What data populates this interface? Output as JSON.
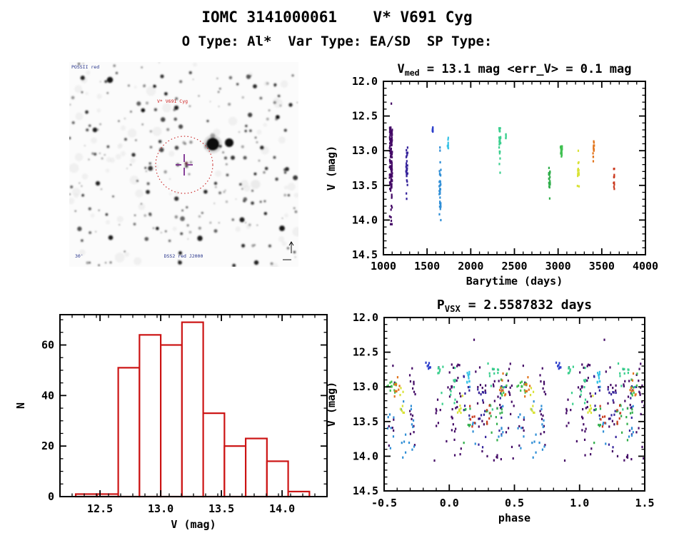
{
  "header": {
    "title": "IOMC 3141000061    V* V691 Cyg",
    "subtitle": "O Type: Al*  Var Type: EA/SD  SP Type:"
  },
  "finding_chart": {
    "survey_label": "POSSII red",
    "target_label": "V* V691 Cyg",
    "scale_label": "30'",
    "footer_label": "DSS2 red J2000",
    "circle_color": "#cc3333",
    "crosshair_color": "#7b2e8f",
    "blue_label_color": "#27348b",
    "red_label_color": "#cc2222"
  },
  "chart_data": [
    {
      "id": "lightcurve",
      "type": "scatter",
      "title": "V_med = 13.1 mag <err_V> = 0.1 mag",
      "title_rich": [
        {
          "t": "V"
        },
        {
          "s": "med"
        },
        {
          "t": " = 13.1 mag <err_V> = 0.1 mag"
        }
      ],
      "v_med_mag": 13.1,
      "err_v_mag": 0.1,
      "xlabel": "Barytime (days)",
      "ylabel": "V (mag)",
      "xlim": [
        1000,
        4000
      ],
      "ylim": [
        12.0,
        14.5
      ],
      "y_inverted": true,
      "xticks": [
        1000,
        1500,
        2000,
        2500,
        3000,
        3500,
        4000
      ],
      "xtick_labels": [
        "1000",
        "1500",
        "2000",
        "2500",
        "3000",
        "3500",
        "4000"
      ],
      "yticks": [
        12.0,
        12.5,
        13.0,
        13.5,
        14.0,
        14.5
      ],
      "ytick_labels": [
        "12.0",
        "12.5",
        "13.0",
        "13.5",
        "14.0",
        "14.5"
      ],
      "x_minor": 100,
      "y_minor": 0.1,
      "color_encoding": "rainbow by observing epoch: violet=early, red=late",
      "clusters": [
        {
          "t": 1085,
          "spread": 16,
          "color": "#440a66",
          "n": 115,
          "y_min": 12.66,
          "y_max": 14.07,
          "core": [
            12.66,
            13.58
          ],
          "core_frac": 0.62
        },
        {
          "t": 1268,
          "spread": 10,
          "color": "#35239b",
          "n": 30,
          "y_min": 12.82,
          "y_max": 13.9,
          "core": [
            12.95,
            13.45
          ],
          "core_frac": 0.6
        },
        {
          "t": 1562,
          "spread": 4,
          "color": "#2c3ecb",
          "n": 8,
          "y_min": 12.65,
          "y_max": 12.74,
          "core": null,
          "core_frac": 0
        },
        {
          "t": 1648,
          "spread": 10,
          "color": "#2f8ed6",
          "n": 36,
          "y_min": 12.95,
          "y_max": 14.02,
          "core": [
            13.25,
            13.85
          ],
          "core_frac": 0.55
        },
        {
          "t": 1738,
          "spread": 5,
          "color": "#38c3e6",
          "n": 10,
          "y_min": 12.78,
          "y_max": 12.97,
          "core": null,
          "core_frac": 0
        },
        {
          "t": 2332,
          "spread": 9,
          "color": "#3bcf8e",
          "n": 26,
          "y_min": 12.64,
          "y_max": 13.38,
          "core": [
            12.66,
            12.92
          ],
          "core_frac": 0.5
        },
        {
          "t": 2404,
          "spread": 4,
          "color": "#3bcf8e",
          "n": 5,
          "y_min": 12.74,
          "y_max": 12.83,
          "core": null,
          "core_frac": 0
        },
        {
          "t": 2900,
          "spread": 8,
          "color": "#2fae4a",
          "n": 20,
          "y_min": 13.24,
          "y_max": 13.86,
          "core": [
            13.28,
            13.55
          ],
          "core_frac": 0.6
        },
        {
          "t": 3036,
          "spread": 10,
          "color": "#3fc050",
          "n": 22,
          "y_min": 12.78,
          "y_max": 13.13,
          "core": [
            12.92,
            13.1
          ],
          "core_frac": 0.6
        },
        {
          "t": 3230,
          "spread": 9,
          "color": "#d9e236",
          "n": 16,
          "y_min": 12.95,
          "y_max": 13.6,
          "core": [
            13.26,
            13.38
          ],
          "core_frac": 0.45
        },
        {
          "t": 3406,
          "spread": 7,
          "color": "#e2751d",
          "n": 16,
          "y_min": 12.8,
          "y_max": 13.16,
          "core": [
            12.95,
            13.12
          ],
          "core_frac": 0.55
        },
        {
          "t": 3640,
          "spread": 6,
          "color": "#cb3a1f",
          "n": 12,
          "y_min": 13.25,
          "y_max": 13.58,
          "core": null,
          "core_frac": 0
        }
      ],
      "outliers": [
        {
          "t": 1090,
          "y": 12.32,
          "phase": 0.19,
          "color": "#440a66"
        }
      ]
    },
    {
      "id": "histogram",
      "type": "histogram",
      "xlabel": "V (mag)",
      "ylabel": "N",
      "bar_color": "#cc1414",
      "bin_start": 12.3,
      "bin_width": 0.175,
      "counts": [
        1,
        1,
        51,
        64,
        60,
        69,
        33,
        20,
        23,
        14,
        2
      ],
      "xlim": [
        12.17,
        14.37
      ],
      "ylim": [
        0,
        72
      ],
      "xticks": [
        12.5,
        13.0,
        13.5,
        14.0
      ],
      "xtick_labels": [
        "12.5",
        "13.0",
        "13.5",
        "14.0"
      ],
      "yticks": [
        0,
        20,
        40,
        60
      ],
      "ytick_labels": [
        "0",
        "20",
        "40",
        "60"
      ],
      "x_minor": 0.1,
      "y_minor": 5
    },
    {
      "id": "phase",
      "type": "scatter",
      "title": "P_VSX = 2.5587832 days",
      "title_rich": [
        {
          "t": "P"
        },
        {
          "s": "VSX"
        },
        {
          "t": " = 2.5587832 days"
        }
      ],
      "period_days": 2.5587832,
      "xlabel": "phase",
      "ylabel": "V (mag)",
      "xlim": [
        -0.5,
        1.5
      ],
      "ylim": [
        12.0,
        14.5
      ],
      "y_inverted": true,
      "xticks": [
        -0.5,
        0.0,
        0.5,
        1.0,
        1.5
      ],
      "xtick_labels": [
        "-0.5",
        "0.0",
        "0.5",
        "1.0",
        "1.5"
      ],
      "yticks": [
        12.0,
        12.5,
        13.0,
        13.5,
        14.0,
        14.5
      ],
      "ytick_labels": [
        "12.0",
        "12.5",
        "13.0",
        "13.5",
        "14.0",
        "14.5"
      ],
      "x_minor": 0.1,
      "y_minor": 0.1,
      "source": "same epoch-colored points as lightcurve, folded at period; each point plotted twice across [-0.5, 1.5]"
    }
  ]
}
